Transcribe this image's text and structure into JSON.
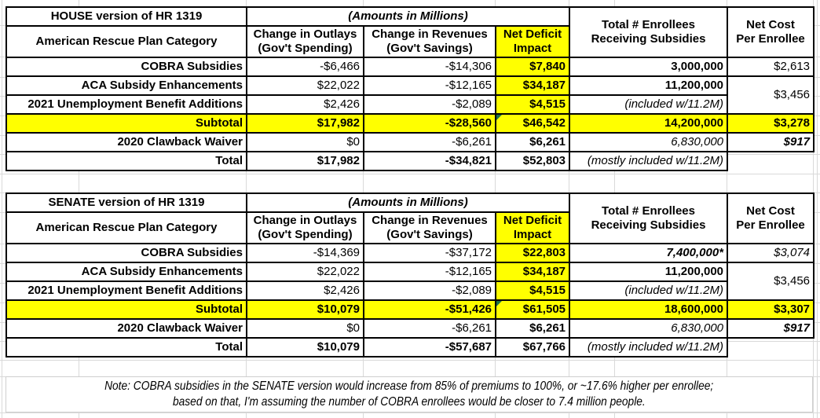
{
  "colors": {
    "highlight": "#ffff00",
    "flag-green": "#1e7145"
  },
  "house": {
    "title": "HOUSE version of HR 1319",
    "amounts_note": "(Amounts in Millions)",
    "headers": {
      "category": "American Rescue Plan Category",
      "outlays_line1": "Change in Outlays",
      "outlays_line2": "(Gov't Spending)",
      "revenues_line1": "Change in Revenues",
      "revenues_line2": "(Gov't Savings)",
      "deficit_line1": "Net Deficit",
      "deficit_line2": "Impact",
      "enrollees_line1": "Total # Enrollees",
      "enrollees_line2": "Receiving Subsidies",
      "net_cost_line1": "Net Cost",
      "net_cost_line2": "Per Enrollee"
    },
    "rows": {
      "cobra": {
        "label": "COBRA Subsidies",
        "outlays": "-$6,466",
        "revenues": "-$14,306",
        "deficit": "$7,840",
        "enrollees": "3,000,000",
        "net_cost": "$2,613"
      },
      "aca": {
        "label": "ACA Subsidy Enhancements",
        "outlays": "$22,022",
        "revenues": "-$12,165",
        "deficit": "$34,187",
        "enrollees": "11,200,000",
        "net_cost_merged": "$3,456"
      },
      "unemployment": {
        "label": "2021 Unemployment Benefit Additions",
        "outlays": "$2,426",
        "revenues": "-$2,089",
        "deficit": "$4,515",
        "enrollees": "(included w/11.2M)"
      },
      "subtotal": {
        "label": "Subtotal",
        "outlays": "$17,982",
        "revenues": "-$28,560",
        "deficit": "$46,542",
        "enrollees": "14,200,000",
        "net_cost": "$3,278"
      },
      "clawback": {
        "label": "2020 Clawback Waiver",
        "outlays": "$0",
        "revenues": "-$6,261",
        "deficit": "$6,261",
        "enrollees": "6,830,000",
        "net_cost": "$917"
      },
      "total": {
        "label": "Total",
        "outlays": "$17,982",
        "revenues": "-$34,821",
        "deficit": "$52,803",
        "enrollees": "(mostly included w/11.2M)"
      }
    }
  },
  "senate": {
    "title": "SENATE version of HR 1319",
    "amounts_note": "(Amounts in Millions)",
    "headers": {
      "category": "American Rescue Plan Category",
      "outlays_line1": "Change in Outlays",
      "outlays_line2": "(Gov't Spending)",
      "revenues_line1": "Change in Revenues",
      "revenues_line2": "(Gov't Savings)",
      "deficit_line1": "Net Deficit",
      "deficit_line2": "Impact",
      "enrollees_line1": "Total # Enrollees",
      "enrollees_line2": "Receiving Subsidies",
      "net_cost_line1": "Net Cost",
      "net_cost_line2": "Per Enrollee"
    },
    "rows": {
      "cobra": {
        "label": "COBRA Subsidies",
        "outlays": "-$14,369",
        "revenues": "-$37,172",
        "deficit": "$22,803",
        "enrollees": "7,400,000*",
        "net_cost": "$3,074"
      },
      "aca": {
        "label": "ACA Subsidy Enhancements",
        "outlays": "$22,022",
        "revenues": "-$12,165",
        "deficit": "$34,187",
        "enrollees": "11,200,000",
        "net_cost_merged": "$3,456"
      },
      "unemployment": {
        "label": "2021 Unemployment Benefit Additions",
        "outlays": "$2,426",
        "revenues": "-$2,089",
        "deficit": "$4,515",
        "enrollees": "(included w/11.2M)"
      },
      "subtotal": {
        "label": "Subtotal",
        "outlays": "$10,079",
        "revenues": "-$51,426",
        "deficit": "$61,505",
        "enrollees": "18,600,000",
        "net_cost": "$3,307"
      },
      "clawback": {
        "label": "2020 Clawback Waiver",
        "outlays": "$0",
        "revenues": "-$6,261",
        "deficit": "$6,261",
        "enrollees": "6,830,000",
        "net_cost": "$917"
      },
      "total": {
        "label": "Total",
        "outlays": "$10,079",
        "revenues": "-$57,687",
        "deficit": "$67,766",
        "enrollees": "(mostly included w/11.2M)"
      }
    }
  },
  "note": {
    "line1": "Note: COBRA subsidies in the SENATE version would increase from 85% of premiums to 100%, or ~17.6% higher per enrollee;",
    "line2": "based on that, I'm assuming the number of COBRA enrollees would be closer to 7.4 million people."
  }
}
